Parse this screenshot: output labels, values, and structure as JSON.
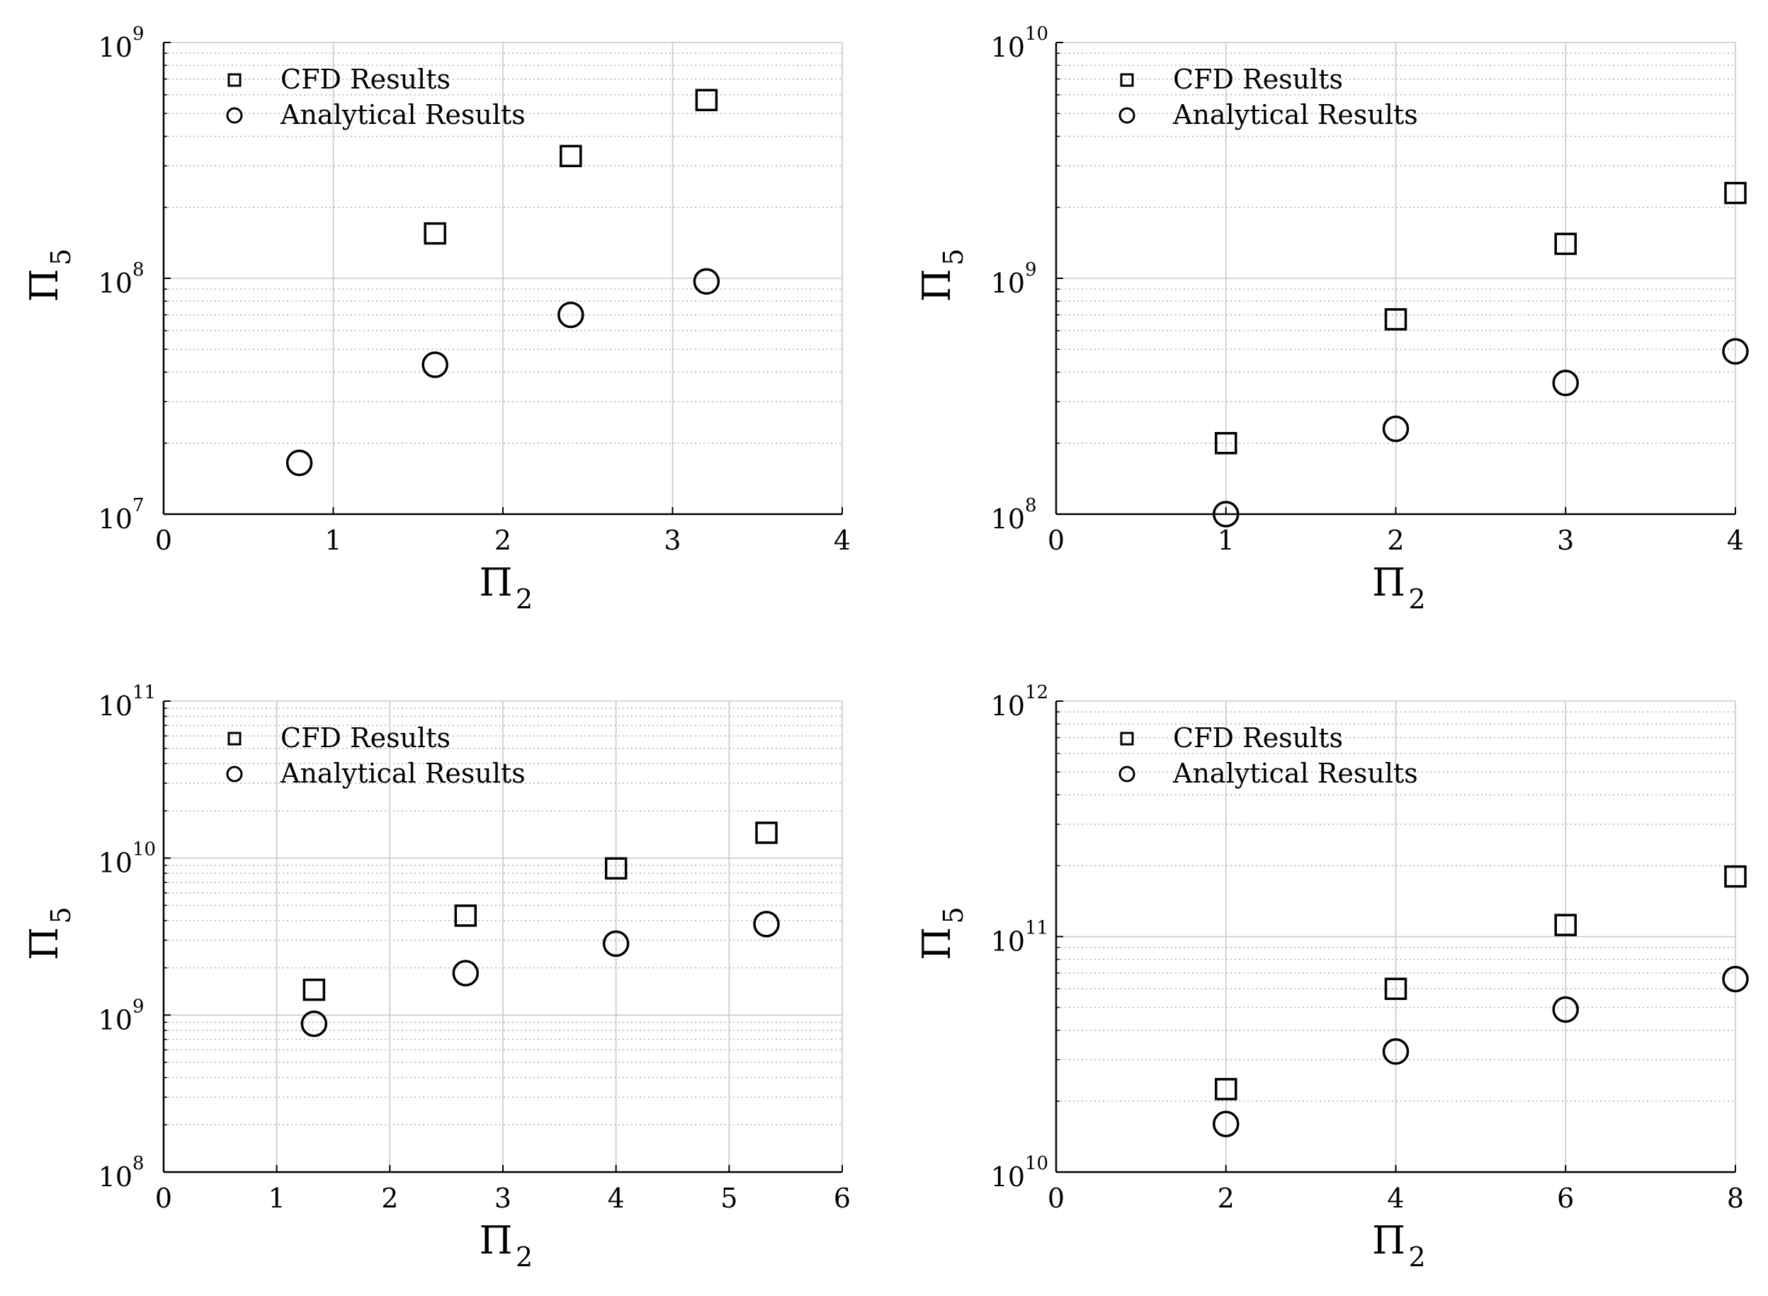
{
  "figure": {
    "background": "#ffffff",
    "colors": {
      "axis": "#000000",
      "grid_major": "#c8c8c8",
      "grid_minor": "#b0b0b0",
      "marker": "#000000"
    },
    "legend_entries": [
      "CFD Results",
      "Analytical Results"
    ],
    "marker_symbols": {
      "CFD Results": "square",
      "Analytical Results": "circle"
    }
  },
  "chart_data": [
    {
      "type": "scatter",
      "position": "top-left",
      "xlabel": "Π",
      "xlabel_sub": "2",
      "ylabel": "Π",
      "ylabel_sub": "5",
      "yscale": "log",
      "xlim": [
        0,
        4
      ],
      "xticks": [
        0,
        1,
        2,
        3,
        4
      ],
      "ylim_exp": [
        7,
        9
      ],
      "ytick_labels": [
        {
          "base": "10",
          "exp": "7"
        },
        {
          "base": "10",
          "exp": "8"
        },
        {
          "base": "10",
          "exp": "9"
        }
      ],
      "grid": true,
      "legend_position": "top-left",
      "series": [
        {
          "name": "CFD Results",
          "marker": "square",
          "x": [
            1.6,
            2.4,
            3.2
          ],
          "y": [
            155000000,
            330000000,
            570000000
          ]
        },
        {
          "name": "Analytical Results",
          "marker": "circle",
          "x": [
            0.8,
            1.6,
            2.4,
            3.2
          ],
          "y": [
            16500000,
            43000000,
            70000000,
            97000000
          ]
        }
      ]
    },
    {
      "type": "scatter",
      "position": "top-right",
      "xlabel": "Π",
      "xlabel_sub": "2",
      "ylabel": "Π",
      "ylabel_sub": "5",
      "yscale": "log",
      "xlim": [
        0,
        4
      ],
      "xticks": [
        0,
        1,
        2,
        3,
        4
      ],
      "ylim_exp": [
        8,
        10
      ],
      "ytick_labels": [
        {
          "base": "10",
          "exp": "8"
        },
        {
          "base": "10",
          "exp": "9"
        },
        {
          "base": "10",
          "exp": "10"
        }
      ],
      "grid": true,
      "legend_position": "top-left",
      "series": [
        {
          "name": "CFD Results",
          "marker": "square",
          "x": [
            1,
            2,
            3,
            4
          ],
          "y": [
            200000000,
            670000000,
            1400000000,
            2300000000
          ]
        },
        {
          "name": "Analytical Results",
          "marker": "circle",
          "x": [
            1,
            2,
            3,
            4
          ],
          "y": [
            100000000,
            230000000,
            360000000,
            490000000
          ]
        }
      ]
    },
    {
      "type": "scatter",
      "position": "bottom-left",
      "xlabel": "Π",
      "xlabel_sub": "2",
      "ylabel": "Π",
      "ylabel_sub": "5",
      "yscale": "log",
      "xlim": [
        0,
        6
      ],
      "xticks": [
        0,
        1,
        2,
        3,
        4,
        5,
        6
      ],
      "ylim_exp": [
        8,
        11
      ],
      "ytick_labels": [
        {
          "base": "10",
          "exp": "8"
        },
        {
          "base": "10",
          "exp": "9"
        },
        {
          "base": "10",
          "exp": "10"
        },
        {
          "base": "10",
          "exp": "11"
        }
      ],
      "grid": true,
      "legend_position": "top-left",
      "series": [
        {
          "name": "CFD Results",
          "marker": "square",
          "x": [
            1.33,
            2.67,
            4.0,
            5.33
          ],
          "y": [
            1450000000,
            4300000000,
            8600000000,
            14500000000
          ]
        },
        {
          "name": "Analytical Results",
          "marker": "circle",
          "x": [
            1.33,
            2.67,
            4.0,
            5.33
          ],
          "y": [
            880000000,
            1850000000,
            2850000000,
            3800000000
          ]
        }
      ]
    },
    {
      "type": "scatter",
      "position": "bottom-right",
      "xlabel": "Π",
      "xlabel_sub": "2",
      "ylabel": "Π",
      "ylabel_sub": "5",
      "yscale": "log",
      "xlim": [
        0,
        8
      ],
      "xticks": [
        0,
        2,
        4,
        6,
        8
      ],
      "ylim_exp": [
        10,
        12
      ],
      "ytick_labels": [
        {
          "base": "10",
          "exp": "10"
        },
        {
          "base": "10",
          "exp": "11"
        },
        {
          "base": "10",
          "exp": "12"
        }
      ],
      "grid": true,
      "legend_position": "top-left",
      "series": [
        {
          "name": "CFD Results",
          "marker": "square",
          "x": [
            2,
            4,
            6,
            8
          ],
          "y": [
            22500000000,
            60000000000,
            112000000000,
            180000000000
          ]
        },
        {
          "name": "Analytical Results",
          "marker": "circle",
          "x": [
            2,
            4,
            6,
            8
          ],
          "y": [
            16000000000,
            32500000000,
            49000000000,
            66000000000
          ]
        }
      ]
    }
  ]
}
